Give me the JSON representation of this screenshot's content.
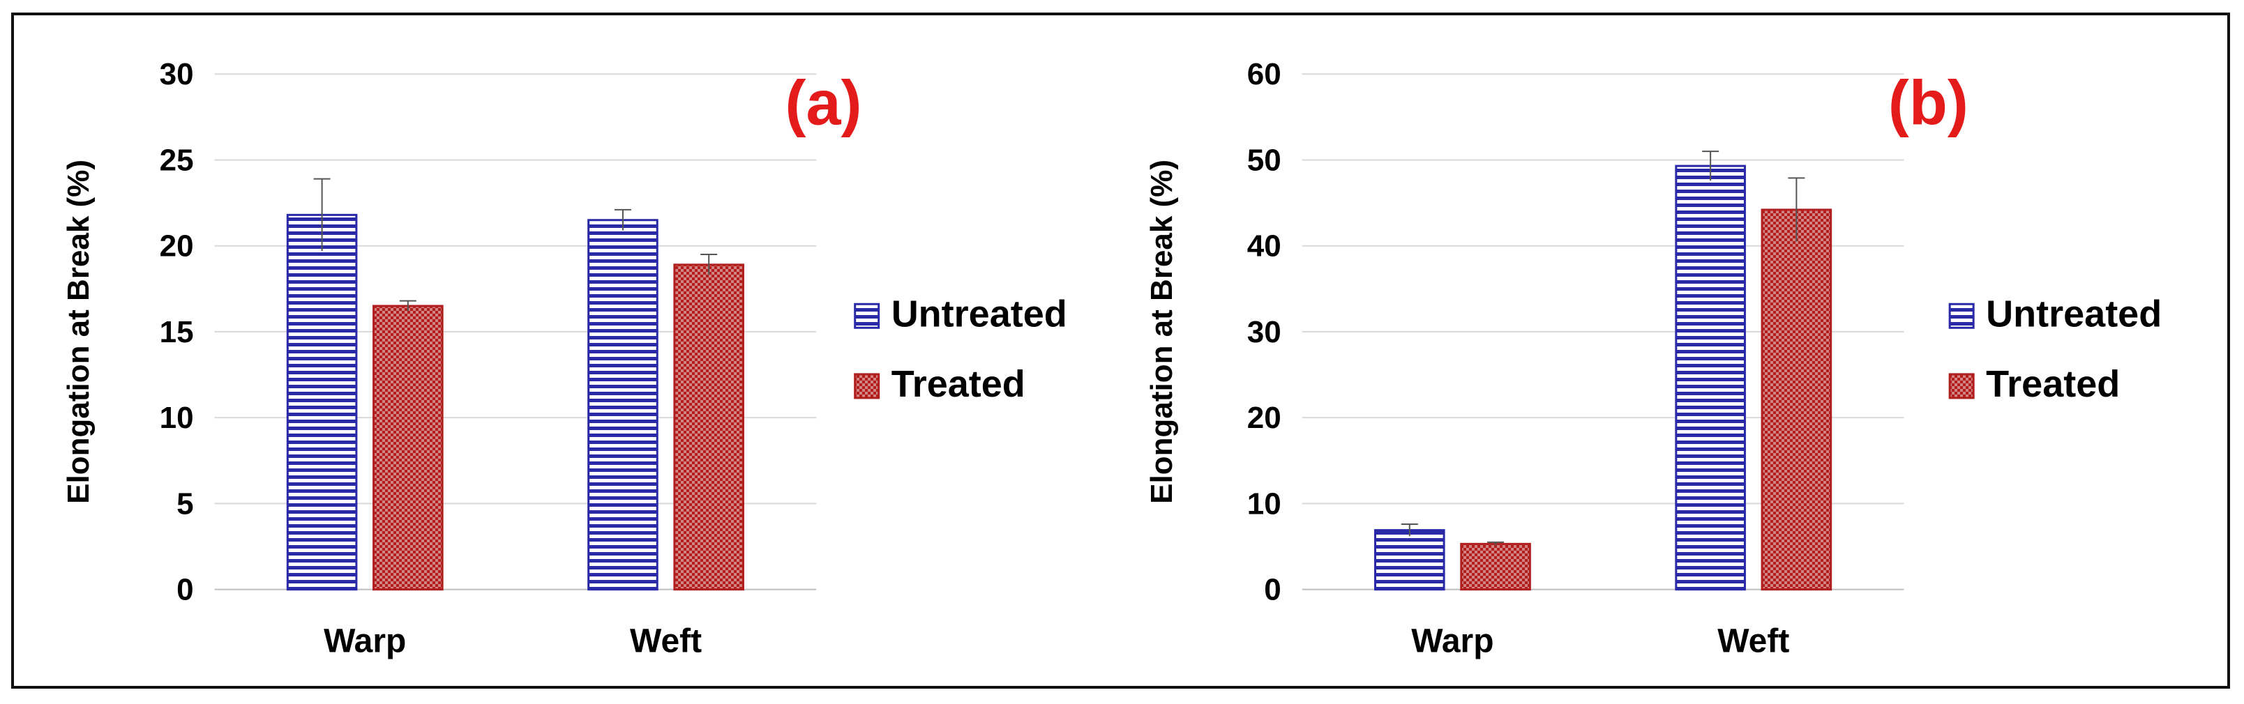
{
  "colors": {
    "untreated": "#2a2aa8",
    "treated": "#b01e1e",
    "panel_tag": "#e31b1b",
    "grid": "#d9d9d9"
  },
  "chart_data": [
    {
      "type": "bar",
      "title": "(a)",
      "ylabel": "Elongation at Break (%)",
      "xlabel": "",
      "categories": [
        "Warp",
        "Weft"
      ],
      "ylim": [
        0,
        30
      ],
      "yticks": [
        0,
        5,
        10,
        15,
        20,
        25,
        30
      ],
      "grid": true,
      "legend": "right",
      "series": [
        {
          "name": "Untreated",
          "values": [
            21.8,
            21.5
          ],
          "errors": [
            2.1,
            0.6
          ]
        },
        {
          "name": "Treated",
          "values": [
            16.5,
            18.9
          ],
          "errors": [
            0.3,
            0.6
          ]
        }
      ]
    },
    {
      "type": "bar",
      "title": "(b)",
      "ylabel": "Elongation at Break (%)",
      "xlabel": "",
      "categories": [
        "Warp",
        "Weft"
      ],
      "ylim": [
        0,
        60
      ],
      "yticks": [
        0,
        10,
        20,
        30,
        40,
        50,
        60
      ],
      "grid": true,
      "legend": "right",
      "series": [
        {
          "name": "Untreated",
          "values": [
            6.9,
            49.3
          ],
          "errors": [
            0.7,
            1.7
          ]
        },
        {
          "name": "Treated",
          "values": [
            5.3,
            44.2
          ],
          "errors": [
            0.2,
            3.7
          ]
        }
      ]
    }
  ]
}
